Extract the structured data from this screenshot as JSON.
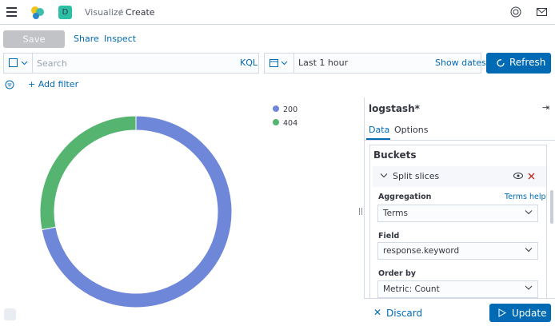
{
  "header": {
    "space_initial": "D",
    "breadcrumbs": [
      "Visualize",
      "Create"
    ]
  },
  "toolbar": {
    "save": "Save",
    "share": "Share",
    "inspect": "Inspect"
  },
  "query": {
    "placeholder": "Search",
    "language": "KQL",
    "time_range": "Last 1 hour",
    "show_dates": "Show dates",
    "refresh": "Refresh",
    "add_filter": "+ Add filter"
  },
  "chart_data": {
    "type": "pie",
    "donut": true,
    "categories": [
      "200",
      "404"
    ],
    "values": [
      72,
      28
    ],
    "colors": [
      "#6f87d8",
      "#54b470"
    ],
    "legend": "top-right"
  },
  "sidebar": {
    "index_pattern": "logstash*",
    "tabs": [
      "Data",
      "Options"
    ],
    "section": "Buckets",
    "bucket": "Split slices",
    "fields": [
      {
        "label": "Aggregation",
        "help": "Terms help",
        "value": "Terms"
      },
      {
        "label": "Field",
        "value": "response.keyword"
      },
      {
        "label": "Order by",
        "value": "Metric: Count"
      }
    ],
    "discard": "Discard",
    "update": "Update"
  }
}
